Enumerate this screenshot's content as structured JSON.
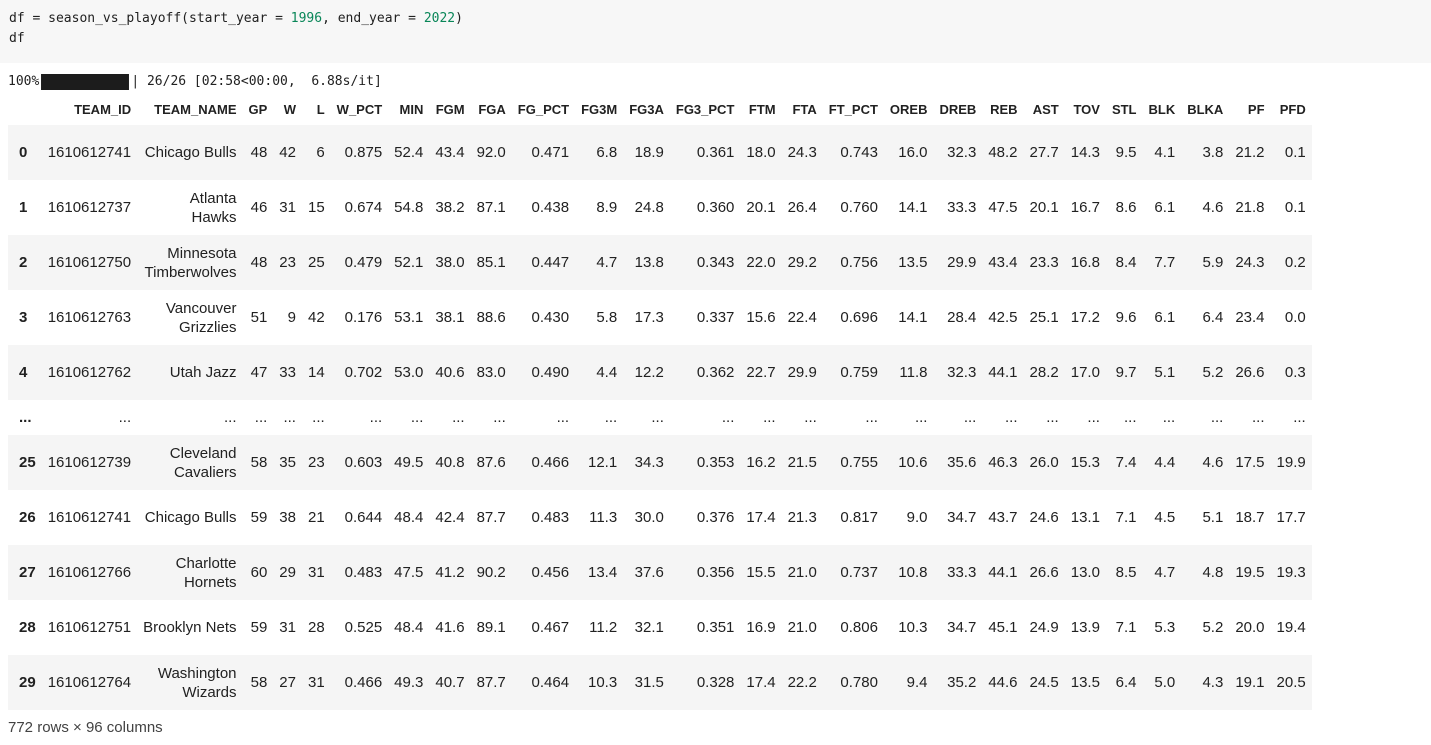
{
  "code": {
    "line1": {
      "prefix": "df = season_vs_playoff(start_year = ",
      "start_year": "1996",
      "middle": ", end_year = ",
      "end_year": "2022",
      "suffix": ")"
    },
    "line2": "df"
  },
  "progress": {
    "percent_label": "100%",
    "fraction": 1.0,
    "detail": "| 26/26 [02:58<00:00,  6.88s/it]"
  },
  "table": {
    "columns": [
      "TEAM_ID",
      "TEAM_NAME",
      "GP",
      "W",
      "L",
      "W_PCT",
      "MIN",
      "FGM",
      "FGA",
      "FG_PCT",
      "FG3M",
      "FG3A",
      "FG3_PCT",
      "FTM",
      "FTA",
      "FT_PCT",
      "OREB",
      "DREB",
      "REB",
      "AST",
      "TOV",
      "STL",
      "BLK",
      "BLKA",
      "PF",
      "PFD"
    ],
    "rows": [
      {
        "index": "0",
        "team_name": [
          "Chicago Bulls"
        ],
        "cells": [
          "1610612741",
          "48",
          "42",
          "6",
          "0.875",
          "52.4",
          "43.4",
          "92.0",
          "0.471",
          "6.8",
          "18.9",
          "0.361",
          "18.0",
          "24.3",
          "0.743",
          "16.0",
          "32.3",
          "48.2",
          "27.7",
          "14.3",
          "9.5",
          "4.1",
          "3.8",
          "21.2",
          "0.1"
        ]
      },
      {
        "index": "1",
        "team_name": [
          "Atlanta",
          "Hawks"
        ],
        "cells": [
          "1610612737",
          "46",
          "31",
          "15",
          "0.674",
          "54.8",
          "38.2",
          "87.1",
          "0.438",
          "8.9",
          "24.8",
          "0.360",
          "20.1",
          "26.4",
          "0.760",
          "14.1",
          "33.3",
          "47.5",
          "20.1",
          "16.7",
          "8.6",
          "6.1",
          "4.6",
          "21.8",
          "0.1"
        ]
      },
      {
        "index": "2",
        "team_name": [
          "Minnesota",
          "Timberwolves"
        ],
        "cells": [
          "1610612750",
          "48",
          "23",
          "25",
          "0.479",
          "52.1",
          "38.0",
          "85.1",
          "0.447",
          "4.7",
          "13.8",
          "0.343",
          "22.0",
          "29.2",
          "0.756",
          "13.5",
          "29.9",
          "43.4",
          "23.3",
          "16.8",
          "8.4",
          "7.7",
          "5.9",
          "24.3",
          "0.2"
        ]
      },
      {
        "index": "3",
        "team_name": [
          "Vancouver",
          "Grizzlies"
        ],
        "cells": [
          "1610612763",
          "51",
          "9",
          "42",
          "0.176",
          "53.1",
          "38.1",
          "88.6",
          "0.430",
          "5.8",
          "17.3",
          "0.337",
          "15.6",
          "22.4",
          "0.696",
          "14.1",
          "28.4",
          "42.5",
          "25.1",
          "17.2",
          "9.6",
          "6.1",
          "6.4",
          "23.4",
          "0.0"
        ]
      },
      {
        "index": "4",
        "team_name": [
          "Utah Jazz"
        ],
        "cells": [
          "1610612762",
          "47",
          "33",
          "14",
          "0.702",
          "53.0",
          "40.6",
          "83.0",
          "0.490",
          "4.4",
          "12.2",
          "0.362",
          "22.7",
          "29.9",
          "0.759",
          "11.8",
          "32.3",
          "44.1",
          "28.2",
          "17.0",
          "9.7",
          "5.1",
          "5.2",
          "26.6",
          "0.3"
        ]
      },
      {
        "index": "...",
        "team_name": [
          "..."
        ],
        "ellipsis": true,
        "cells": [
          "...",
          "...",
          "...",
          "...",
          "...",
          "...",
          "...",
          "...",
          "...",
          "...",
          "...",
          "...",
          "...",
          "...",
          "...",
          "...",
          "...",
          "...",
          "...",
          "...",
          "...",
          "...",
          "...",
          "...",
          "..."
        ]
      },
      {
        "index": "25",
        "team_name": [
          "Cleveland",
          "Cavaliers"
        ],
        "cells": [
          "1610612739",
          "58",
          "35",
          "23",
          "0.603",
          "49.5",
          "40.8",
          "87.6",
          "0.466",
          "12.1",
          "34.3",
          "0.353",
          "16.2",
          "21.5",
          "0.755",
          "10.6",
          "35.6",
          "46.3",
          "26.0",
          "15.3",
          "7.4",
          "4.4",
          "4.6",
          "17.5",
          "19.9"
        ]
      },
      {
        "index": "26",
        "team_name": [
          "Chicago Bulls"
        ],
        "cells": [
          "1610612741",
          "59",
          "38",
          "21",
          "0.644",
          "48.4",
          "42.4",
          "87.7",
          "0.483",
          "11.3",
          "30.0",
          "0.376",
          "17.4",
          "21.3",
          "0.817",
          "9.0",
          "34.7",
          "43.7",
          "24.6",
          "13.1",
          "7.1",
          "4.5",
          "5.1",
          "18.7",
          "17.7"
        ]
      },
      {
        "index": "27",
        "team_name": [
          "Charlotte",
          "Hornets"
        ],
        "cells": [
          "1610612766",
          "60",
          "29",
          "31",
          "0.483",
          "47.5",
          "41.2",
          "90.2",
          "0.456",
          "13.4",
          "37.6",
          "0.356",
          "15.5",
          "21.0",
          "0.737",
          "10.8",
          "33.3",
          "44.1",
          "26.6",
          "13.0",
          "8.5",
          "4.7",
          "4.8",
          "19.5",
          "19.3"
        ]
      },
      {
        "index": "28",
        "team_name": [
          "Brooklyn Nets"
        ],
        "cells": [
          "1610612751",
          "59",
          "31",
          "28",
          "0.525",
          "48.4",
          "41.6",
          "89.1",
          "0.467",
          "11.2",
          "32.1",
          "0.351",
          "16.9",
          "21.0",
          "0.806",
          "10.3",
          "34.7",
          "45.1",
          "24.9",
          "13.9",
          "7.1",
          "5.3",
          "5.2",
          "20.0",
          "19.4"
        ]
      },
      {
        "index": "29",
        "team_name": [
          "Washington",
          "Wizards"
        ],
        "cells": [
          "1610612764",
          "58",
          "27",
          "31",
          "0.466",
          "49.3",
          "40.7",
          "87.7",
          "0.464",
          "10.3",
          "31.5",
          "0.328",
          "17.4",
          "22.2",
          "0.780",
          "9.4",
          "35.2",
          "44.6",
          "24.5",
          "13.5",
          "6.4",
          "5.0",
          "4.3",
          "19.1",
          "20.5"
        ]
      }
    ]
  },
  "footer": "772 rows × 96 columns"
}
